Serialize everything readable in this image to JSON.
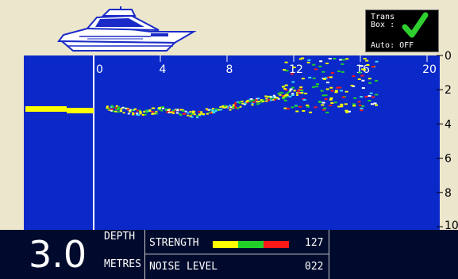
{
  "trans_box": {
    "label": "Trans\nBox :",
    "status": "check",
    "auto_text": "Auto: OFF"
  },
  "scale": {
    "ticks": [
      "0",
      "4",
      "8",
      "12",
      "16",
      "20"
    ]
  },
  "depth_axis": {
    "ticks": [
      "0",
      "2",
      "4",
      "6",
      "8",
      "10"
    ]
  },
  "readout": {
    "depth_value": "3.0",
    "depth_label": "DEPTH",
    "units_label": "METRES",
    "strength_label": "STRENGTH",
    "strength_value": "127",
    "noise_label": "NOISE LEVEL",
    "noise_value": "022"
  },
  "colors": {
    "water": "#0a29c8",
    "panel": "#000a2c",
    "background": "#ebe6cc",
    "boat": "#1a2ac8",
    "check": "#2fcf2f",
    "strength_segments": [
      "#ffff00",
      "#ffff00",
      "#22d02a",
      "#22d02a",
      "#ff1818",
      "#ff1818"
    ]
  }
}
